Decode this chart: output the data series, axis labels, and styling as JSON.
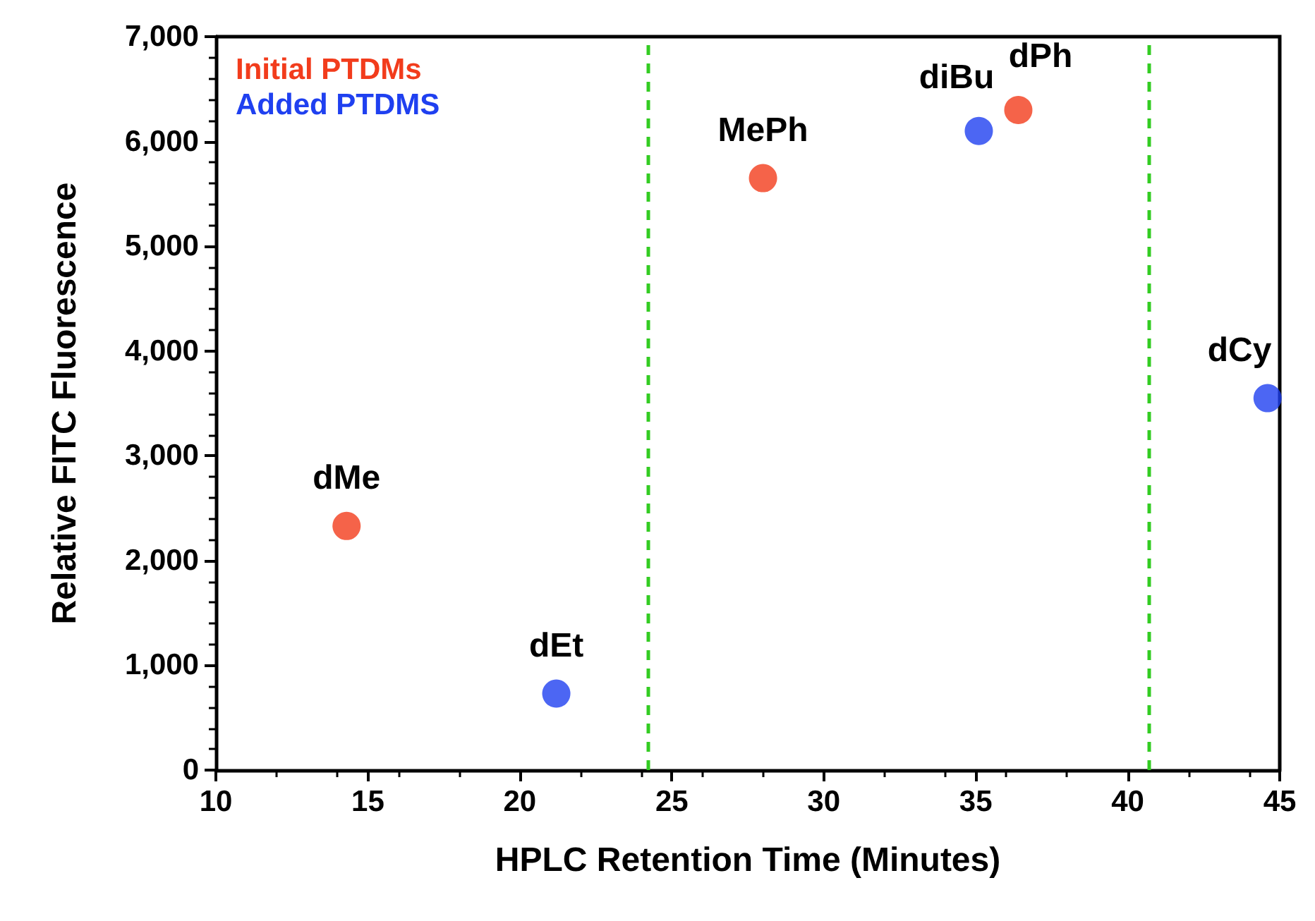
{
  "chart_data": {
    "type": "scatter",
    "xlabel": "HPLC Retention Time (Minutes)",
    "ylabel": "Relative FITC Fluorescence",
    "series": [
      {
        "name": "Initial PTDMs",
        "color": "#f23c1c",
        "x": [
          14.3,
          28.0,
          36.4
        ],
        "values": [
          2330,
          5650,
          6300
        ]
      },
      {
        "name": "Added PTDMS",
        "color": "#1f40f0",
        "x": [
          21.2,
          35.1,
          44.6
        ],
        "values": [
          730,
          6100,
          3550
        ]
      }
    ],
    "annotations": [
      {
        "text": "dMe",
        "x": 14.3,
        "y": 2330
      },
      {
        "text": "dEt",
        "x": 21.2,
        "y": 730
      },
      {
        "text": "MePh",
        "x": 28.0,
        "y": 5650
      },
      {
        "text": "diBu",
        "x": 35.1,
        "y": 6100
      },
      {
        "text": "dPh",
        "x": 36.4,
        "y": 6300
      },
      {
        "text": "dCy",
        "x": 44.6,
        "y": 3550
      }
    ],
    "ref_lines": [
      {
        "axis": "x",
        "value": 24.2,
        "color": "#33cc22",
        "line_style": "dashed"
      },
      {
        "axis": "x",
        "value": 40.7,
        "color": "#33cc22",
        "line_style": "dashed"
      }
    ],
    "xlim": [
      10,
      45
    ],
    "xticks": [
      10,
      15,
      20,
      25,
      30,
      35,
      40,
      45
    ],
    "ylim": [
      0,
      7000
    ],
    "yticks": [
      0,
      {
        "value": 1000,
        "label": "1,000"
      },
      {
        "value": 2000,
        "label": "2,000"
      },
      {
        "value": 3000,
        "label": "3,000"
      },
      {
        "value": 4000,
        "label": "4,000"
      },
      {
        "value": 5000,
        "label": "5,000"
      },
      {
        "value": 6000,
        "label": "6,000"
      },
      {
        "value": 7000,
        "label": "7,000"
      }
    ],
    "grid": false,
    "legend": "top left",
    "marker": "circle"
  }
}
